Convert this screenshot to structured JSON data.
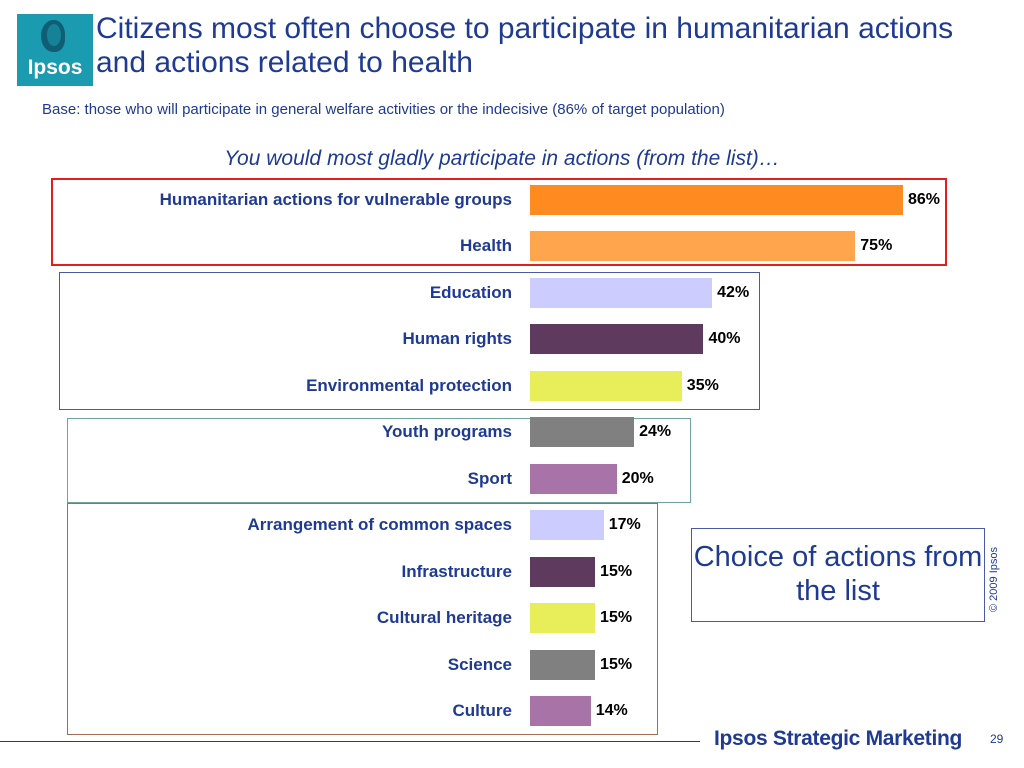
{
  "logo": {
    "text": "Ipsos"
  },
  "title": "Citizens most often choose to participate in humanitarian actions and actions related to health",
  "base_note": "Base: those who will participate in general welfare activities or the indecisive (86% of target population)",
  "callout": "Choice of actions from the list",
  "footer": {
    "copyright": "© 2009 Ipsos",
    "brand": "Ipsos Strategic Marketing",
    "page_number": "29"
  },
  "colors": {
    "accent_blue": "#1f3a93",
    "highlight_red": "#e02020"
  },
  "chart_data": {
    "type": "bar",
    "orientation": "horizontal",
    "title": "You would most gladly participate in actions (from the list)…",
    "xlabel": "",
    "ylabel": "",
    "xlim": [
      0,
      100
    ],
    "grid": false,
    "categories": [
      "Humanitarian actions for vulnerable groups",
      "Health",
      "Education",
      "Human rights",
      "Environmental protection",
      "Youth programs",
      "Sport",
      "Arrangement of common spaces",
      "Infrastructure",
      "Cultural heritage",
      "Science",
      "Culture"
    ],
    "values": [
      86,
      75,
      42,
      40,
      35,
      24,
      20,
      17,
      15,
      15,
      15,
      14
    ],
    "value_labels": [
      "86%",
      "75%",
      "42%",
      "40%",
      "35%",
      "24%",
      "20%",
      "17%",
      "15%",
      "15%",
      "15%",
      "14%"
    ],
    "bar_colors": [
      "#ff8a1f",
      "#ffa54d",
      "#ccccff",
      "#5e3a5e",
      "#e8ee5a",
      "#808080",
      "#a874a8",
      "#ccccff",
      "#5e3a5e",
      "#e8ee5a",
      "#808080",
      "#a874a8"
    ]
  }
}
